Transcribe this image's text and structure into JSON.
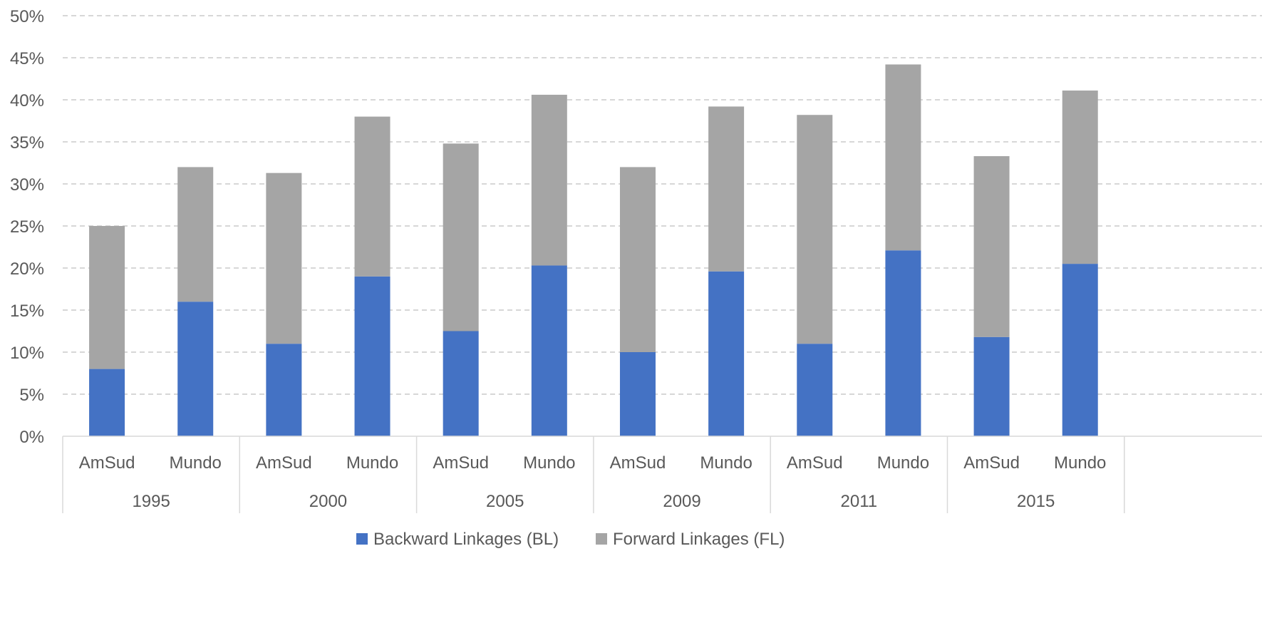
{
  "chart_data": {
    "type": "bar",
    "stacked": true,
    "groups": [
      "1995",
      "2000",
      "2005",
      "2009",
      "2011",
      "2015"
    ],
    "subcategories": [
      "AmSud",
      "Mundo"
    ],
    "categories": [
      "AmSud",
      "Mundo",
      "AmSud",
      "Mundo",
      "AmSud",
      "Mundo",
      "AmSud",
      "Mundo",
      "AmSud",
      "Mundo",
      "AmSud",
      "Mundo"
    ],
    "series": [
      {
        "name": "Backward Linkages (BL)",
        "color": "#4472C4",
        "values": [
          8,
          16,
          11,
          19,
          12.5,
          20.3,
          10,
          19.6,
          11,
          22.1,
          11.8,
          20.5
        ]
      },
      {
        "name": "Forward Linkages (FL)",
        "color": "#A5A5A5",
        "values": [
          17,
          16,
          20.3,
          19,
          22.3,
          20.3,
          22,
          19.6,
          27.2,
          22.1,
          21.5,
          20.6
        ]
      }
    ],
    "ylim": [
      0,
      50
    ],
    "ytick_step": 5,
    "ytick_labels": [
      "0%",
      "5%",
      "10%",
      "15%",
      "20%",
      "25%",
      "30%",
      "35%",
      "40%",
      "45%",
      "50%"
    ],
    "grid": true,
    "legend": "bottom",
    "title": "",
    "xlabel": "",
    "ylabel": ""
  }
}
